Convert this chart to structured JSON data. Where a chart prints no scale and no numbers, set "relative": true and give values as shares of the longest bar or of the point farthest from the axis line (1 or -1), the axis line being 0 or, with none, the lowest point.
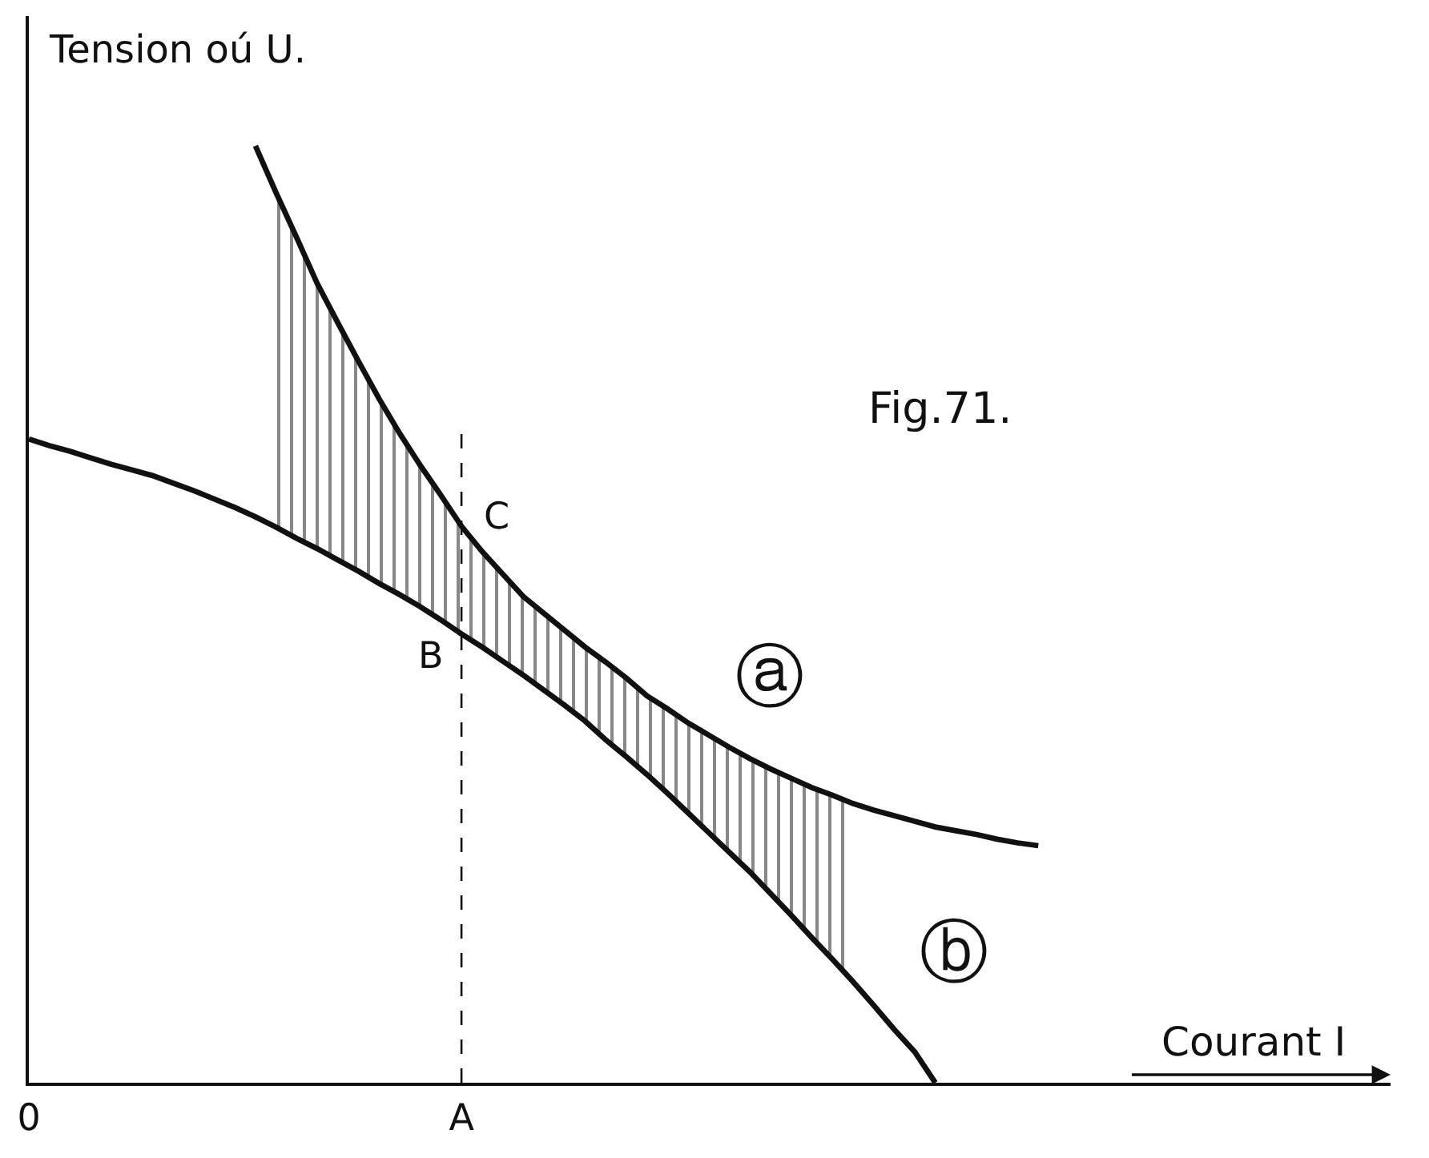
{
  "chart_data": {
    "type": "line",
    "relative": true,
    "xlabel": "Courant I",
    "ylabel": "Tension oú U.",
    "categories": [
      "0",
      null,
      null,
      null,
      null,
      null,
      null,
      null,
      null,
      null,
      null,
      null,
      null,
      null,
      null,
      null,
      null,
      null,
      null,
      null,
      null,
      "A",
      null,
      null,
      null,
      null,
      null,
      null,
      null,
      null,
      null,
      null,
      null,
      null,
      null,
      null,
      null,
      null,
      null,
      null,
      null,
      null,
      null,
      null,
      null,
      null,
      null,
      null,
      null,
      null,
      null,
      null,
      null,
      null,
      null,
      null,
      null,
      null,
      null,
      null,
      null,
      null,
      null,
      null,
      null,
      null
    ],
    "series": [
      {
        "name": "ⓐ",
        "color": "#111111",
        "values": [
          null,
          null,
          null,
          null,
          null,
          null,
          null,
          null,
          null,
          null,
          null,
          1.0,
          0.95,
          0.902,
          0.853,
          0.811,
          0.77,
          0.73,
          0.693,
          0.659,
          0.627,
          0.594,
          0.567,
          0.543,
          0.519,
          0.501,
          0.483,
          0.465,
          0.449,
          0.432,
          0.413,
          0.399,
          0.384,
          0.371,
          0.358,
          0.346,
          0.335,
          0.325,
          0.315,
          0.307,
          0.298,
          0.291,
          0.285,
          0.279,
          0.273,
          0.269,
          0.265,
          0.26,
          0.256,
          0.253,
          null,
          null,
          null,
          null,
          null,
          null,
          null,
          null,
          null,
          null,
          null,
          null,
          null,
          null,
          null,
          null
        ],
        "upper": [
          null,
          null,
          null,
          null,
          null,
          null,
          null,
          null,
          null,
          null,
          null,
          null,
          0.95,
          0.902,
          0.853,
          0.811,
          0.77,
          0.73,
          0.693,
          0.659,
          0.627,
          0.594,
          0.567,
          0.543,
          0.519,
          0.501,
          0.483,
          0.465,
          0.449,
          0.432,
          0.413,
          0.399,
          0.384,
          0.371,
          0.358,
          0.346,
          0.335,
          0.325,
          0.315,
          0.307,
          0.298,
          null,
          null,
          null,
          null,
          null,
          null,
          null,
          null,
          null,
          null,
          null,
          null,
          null,
          null,
          null,
          null,
          null,
          null,
          null,
          null,
          null,
          null,
          null,
          null,
          null
        ],
        "lower": [
          null,
          null,
          null,
          null,
          null,
          null,
          null,
          null,
          null,
          null,
          null,
          null,
          0.593,
          0.581,
          0.57,
          0.558,
          0.546,
          0.533,
          0.521,
          0.508,
          0.494,
          0.479,
          0.465,
          0.45,
          0.435,
          0.419,
          0.403,
          0.386,
          0.366,
          0.348,
          0.329,
          0.309,
          0.288,
          0.267,
          0.246,
          0.225,
          0.202,
          0.179,
          0.155,
          0.132,
          0.108,
          null,
          null,
          null,
          null,
          null,
          null,
          null,
          null,
          null,
          null,
          null,
          null,
          null,
          null,
          null,
          null,
          null,
          null,
          null,
          null,
          null,
          null,
          null,
          null,
          null
        ]
      },
      {
        "name": "ⓑ",
        "color": "#111111",
        "values": [
          0.687,
          0.68,
          0.674,
          0.667,
          0.66,
          0.654,
          0.648,
          0.64,
          0.632,
          0.623,
          0.614,
          0.604,
          0.593,
          0.581,
          0.57,
          0.558,
          0.546,
          0.533,
          0.521,
          0.508,
          0.494,
          0.479,
          0.465,
          0.45,
          0.435,
          0.419,
          0.403,
          0.386,
          0.366,
          0.348,
          0.329,
          0.309,
          0.288,
          0.267,
          0.246,
          0.225,
          0.202,
          0.179,
          0.155,
          0.132,
          0.108,
          0.083,
          0.057,
          0.033,
          0,
          null,
          null,
          null,
          null,
          null,
          null,
          null,
          null,
          null,
          null,
          null,
          null,
          null,
          null,
          null,
          null,
          null,
          null,
          null,
          null,
          null
        ]
      }
    ],
    "ref_lines": [
      {
        "axis": "x",
        "value": "A",
        "color": "#111111",
        "line_style": "dashed"
      }
    ],
    "annotations": [
      "Fig.71.",
      {
        "text": "B",
        "x": "A",
        "y": 0.479
      },
      {
        "text": "C",
        "x": "A",
        "y": 0.594
      }
    ],
    "line_style": "solid",
    "legend": false,
    "tick_labels": "x"
  }
}
